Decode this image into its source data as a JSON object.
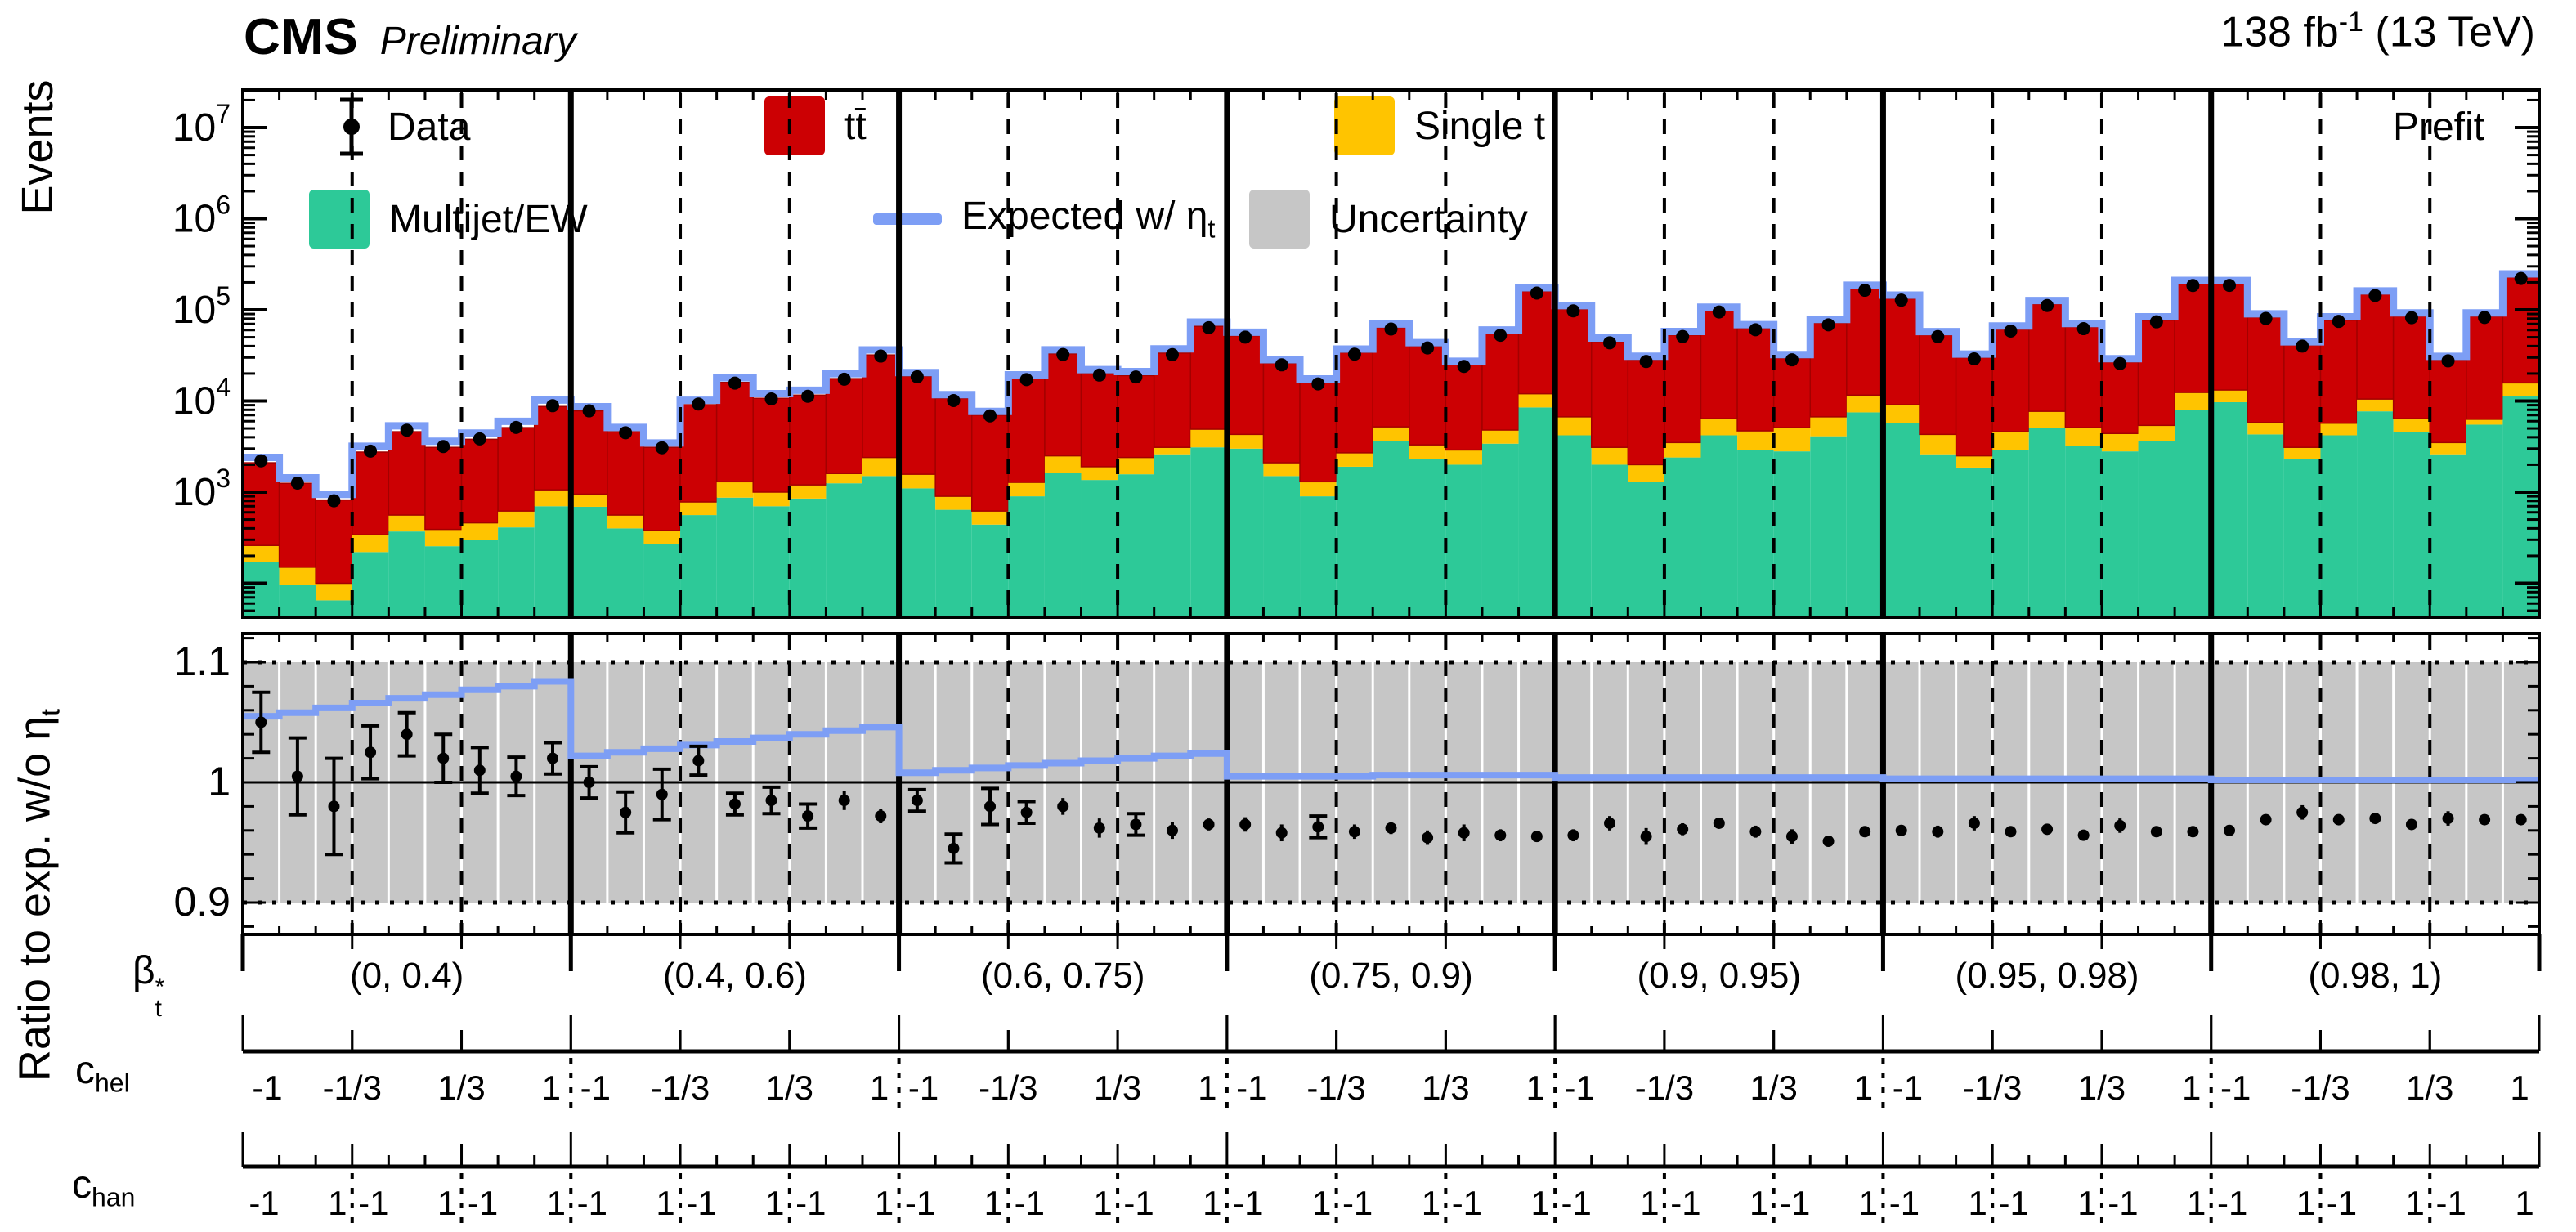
{
  "header": {
    "experiment": "CMS",
    "status": "Preliminary",
    "lumi_prefix": "138 fb",
    "lumi_sup": "-1",
    "lumi_suffix": " (13 TeV)",
    "fit_label": "Prefit"
  },
  "legend": {
    "data": "Data",
    "ttbar": "tt̄",
    "single_t": "Single t",
    "multijet": "Multijet/EW",
    "expected_base": "Expected w/ η",
    "expected_sub": "t",
    "uncertainty": "Uncertainty"
  },
  "axes": {
    "y_main_title": "Events",
    "y_ratio_base": "Ratio to exp. w/o η",
    "y_ratio_sub": "t",
    "y_main_tick_exponents": [
      7,
      6,
      5,
      4,
      3
    ],
    "y_ratio_tick_labels": [
      "1.1",
      "1",
      "0.9"
    ],
    "beta_base": "β",
    "beta_sub": "t",
    "beta_sup": "*",
    "chel_base": "c",
    "chel_sub": "hel",
    "chan_base": "c",
    "chan_sub": "han"
  },
  "colors": {
    "ttbar": "#cc0003",
    "ttbar_edge": "#a30000",
    "single_t": "#ffc400",
    "multijet": "#2dc998",
    "expected_line": "#7d9ef5",
    "uncertainty": "#c6c6c6",
    "data": "#000000"
  },
  "chart_data": {
    "type": "bar",
    "title": "CMS Preliminary prefit stacked event yields vs (beta_t*, c_hel, c_han) bins",
    "ylabel": "Events",
    "ratio_ylabel": "Ratio to exp. w/o eta_t",
    "y_scale": "log",
    "ylim": [
      40,
      26000000
    ],
    "ratio_ylim": [
      0.873,
      1.125
    ],
    "uncertainty_band": [
      0.9,
      1.1
    ],
    "chel_tick_labels": [
      "-1",
      "-1/3",
      "1/3",
      "1"
    ],
    "chan_tick_labels": [
      "-1",
      "1"
    ],
    "bins_per_chel": 3,
    "chel_per_region": 3,
    "regions": [
      {
        "label": "(0, 0.4)",
        "total": [
          2100,
          1250,
          820,
          2750,
          4600,
          3100,
          3800,
          5100,
          8700
        ],
        "single_t_top": [
          260,
          150,
          100,
          340,
          560,
          390,
          460,
          620,
          1060
        ],
        "multijet_top": [
          170,
          95,
          65,
          220,
          370,
          255,
          300,
          410,
          700
        ],
        "data_ratio": [
          1.05,
          1.005,
          0.98,
          1.025,
          1.04,
          1.02,
          1.01,
          1.005,
          1.02
        ],
        "data_err": [
          0.025,
          0.032,
          0.04,
          0.022,
          0.018,
          0.02,
          0.019,
          0.016,
          0.013
        ],
        "exp_ratio": [
          1.055,
          1.058,
          1.062,
          1.066,
          1.07,
          1.073,
          1.077,
          1.08,
          1.084
        ]
      },
      {
        "label": "(0.4, 0.6)",
        "total": [
          7800,
          4600,
          3100,
          9100,
          16000,
          10700,
          11600,
          17600,
          32000
        ],
        "single_t_top": [
          950,
          560,
          380,
          780,
          1300,
          1000,
          1200,
          1600,
          2400
        ],
        "multijet_top": [
          690,
          400,
          270,
          560,
          870,
          700,
          850,
          1250,
          1500
        ],
        "data_ratio": [
          1.0,
          0.975,
          0.99,
          1.018,
          0.982,
          0.985,
          0.972,
          0.985,
          0.972
        ],
        "data_err": [
          0.013,
          0.017,
          0.021,
          0.012,
          0.009,
          0.011,
          0.01,
          0.008,
          0.006
        ],
        "exp_ratio": [
          1.022,
          1.025,
          1.028,
          1.031,
          1.034,
          1.037,
          1.04,
          1.043,
          1.046
        ]
      },
      {
        "label": "(0.6, 0.75)",
        "total": [
          18700,
          10700,
          7000,
          17600,
          33000,
          20000,
          19000,
          33600,
          66000
        ],
        "single_t_top": [
          1570,
          900,
          620,
          1280,
          2500,
          1900,
          2400,
          3100,
          4900
        ],
        "multijet_top": [
          1100,
          640,
          440,
          900,
          1640,
          1360,
          1570,
          2600,
          3100
        ],
        "data_ratio": [
          0.985,
          0.945,
          0.98,
          0.975,
          0.98,
          0.962,
          0.965,
          0.96,
          0.965
        ],
        "data_err": [
          0.009,
          0.012,
          0.015,
          0.009,
          0.007,
          0.008,
          0.009,
          0.007,
          0.005
        ],
        "exp_ratio": [
          1.008,
          1.01,
          1.012,
          1.014,
          1.016,
          1.018,
          1.02,
          1.022,
          1.024
        ]
      },
      {
        "label": "(0.75, 0.9)",
        "total": [
          52000,
          26000,
          16000,
          34000,
          64000,
          40000,
          25000,
          55000,
          160000
        ],
        "single_t_top": [
          4300,
          2100,
          1300,
          2700,
          5200,
          3300,
          2900,
          4800,
          12000
        ],
        "multijet_top": [
          3000,
          1500,
          900,
          1900,
          3600,
          2300,
          2000,
          3400,
          8500
        ],
        "data_ratio": [
          0.965,
          0.958,
          0.963,
          0.959,
          0.962,
          0.954,
          0.958,
          0.956,
          0.955
        ],
        "data_err": [
          0.006,
          0.007,
          0.009,
          0.006,
          0.005,
          0.006,
          0.007,
          0.005,
          0.004
        ],
        "exp_ratio": [
          1.005,
          1.005,
          1.005,
          1.005,
          1.006,
          1.006,
          1.006,
          1.006,
          1.006
        ]
      },
      {
        "label": "(0.9, 0.95)",
        "total": [
          102000,
          45000,
          28400,
          53000,
          98000,
          63000,
          29600,
          72000,
          171000
        ],
        "single_t_top": [
          6700,
          3100,
          2000,
          3500,
          6400,
          4700,
          5100,
          6700,
          11600
        ],
        "multijet_top": [
          4200,
          2000,
          1300,
          2400,
          4200,
          2900,
          2800,
          4100,
          7500
        ],
        "data_ratio": [
          0.956,
          0.966,
          0.955,
          0.961,
          0.966,
          0.959,
          0.955,
          0.951,
          0.959
        ],
        "data_err": [
          0.005,
          0.006,
          0.007,
          0.005,
          0.004,
          0.005,
          0.006,
          0.004,
          0.003
        ],
        "exp_ratio": [
          1.004,
          1.004,
          1.004,
          1.004,
          1.004,
          1.004,
          1.004,
          1.004,
          1.004
        ]
      },
      {
        "label": "(0.95, 0.98)",
        "total": [
          133000,
          53000,
          30000,
          61000,
          116000,
          65000,
          26700,
          77000,
          193000
        ],
        "single_t_top": [
          9100,
          4300,
          2500,
          4600,
          7700,
          5100,
          4400,
          5400,
          12400
        ],
        "multijet_top": [
          5700,
          2600,
          1860,
          2900,
          5100,
          3200,
          2800,
          3600,
          7900
        ],
        "data_ratio": [
          0.96,
          0.959,
          0.966,
          0.959,
          0.961,
          0.956,
          0.964,
          0.959,
          0.959
        ],
        "data_err": [
          0.004,
          0.005,
          0.006,
          0.004,
          0.004,
          0.004,
          0.006,
          0.004,
          0.003
        ],
        "exp_ratio": [
          1.003,
          1.003,
          1.003,
          1.003,
          1.003,
          1.003,
          1.003,
          1.003,
          1.003
        ]
      },
      {
        "label": "(0.98, 1)",
        "total": [
          193000,
          83000,
          41000,
          77000,
          148000,
          85000,
          28400,
          85000,
          228000
        ],
        "single_t_top": [
          13200,
          5800,
          3100,
          5700,
          10500,
          6400,
          3500,
          6300,
          15800
        ],
        "multijet_top": [
          9700,
          4300,
          2300,
          4200,
          7700,
          4600,
          2600,
          5500,
          11200
        ],
        "data_ratio": [
          0.96,
          0.969,
          0.975,
          0.969,
          0.97,
          0.965,
          0.97,
          0.969,
          0.969
        ],
        "data_err": [
          0.004,
          0.004,
          0.006,
          0.004,
          0.003,
          0.004,
          0.006,
          0.004,
          0.003
        ],
        "exp_ratio": [
          1.002,
          1.002,
          1.002,
          1.002,
          1.002,
          1.002,
          1.002,
          1.002,
          1.002
        ]
      }
    ]
  }
}
